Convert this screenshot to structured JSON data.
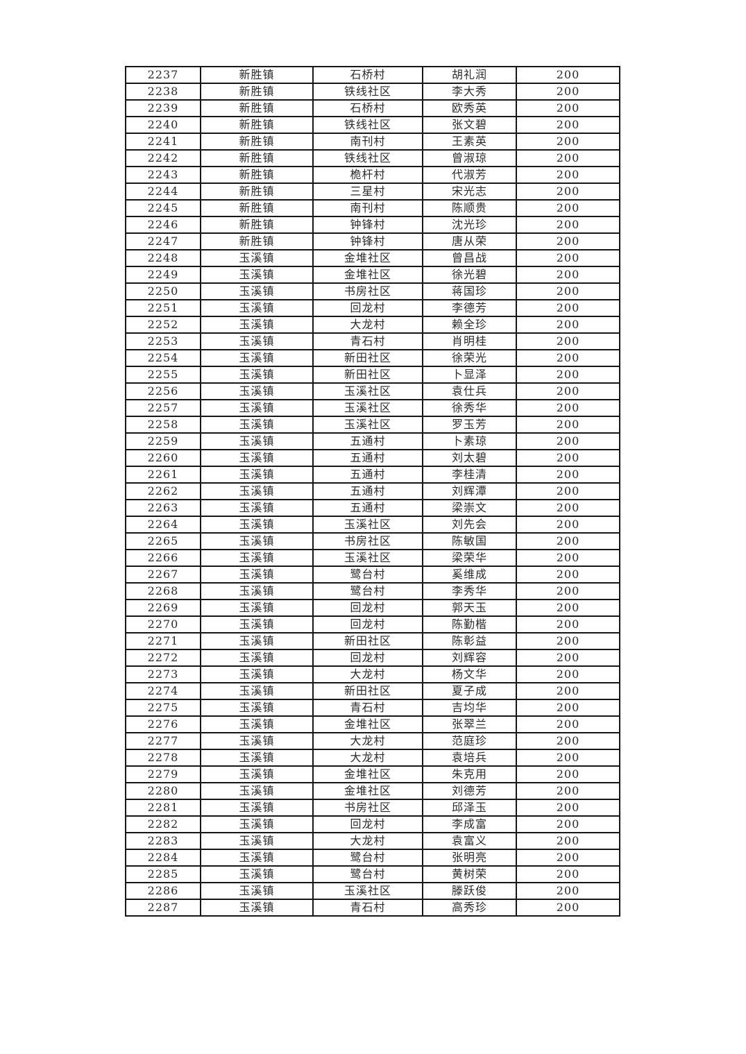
{
  "page": {
    "background_color": "#ffffff",
    "text_color": "#2a2a2a",
    "border_color": "#161616"
  },
  "table": {
    "description": "subsidy roster list, 5 columns, no visible header row on this page",
    "rows": [
      {
        "id": "2237",
        "town": "新胜镇",
        "village": "石桥村",
        "name": "胡礼润",
        "amount": "200"
      },
      {
        "id": "2238",
        "town": "新胜镇",
        "village": "铁线社区",
        "name": "李大秀",
        "amount": "200"
      },
      {
        "id": "2239",
        "town": "新胜镇",
        "village": "石桥村",
        "name": "欧秀英",
        "amount": "200"
      },
      {
        "id": "2240",
        "town": "新胜镇",
        "village": "铁线社区",
        "name": "张文碧",
        "amount": "200"
      },
      {
        "id": "2241",
        "town": "新胜镇",
        "village": "南刊村",
        "name": "王素英",
        "amount": "200"
      },
      {
        "id": "2242",
        "town": "新胜镇",
        "village": "铁线社区",
        "name": "曾淑琼",
        "amount": "200"
      },
      {
        "id": "2243",
        "town": "新胜镇",
        "village": "桅杆村",
        "name": "代淑芳",
        "amount": "200"
      },
      {
        "id": "2244",
        "town": "新胜镇",
        "village": "三星村",
        "name": "宋光志",
        "amount": "200"
      },
      {
        "id": "2245",
        "town": "新胜镇",
        "village": "南刊村",
        "name": "陈顺贵",
        "amount": "200"
      },
      {
        "id": "2246",
        "town": "新胜镇",
        "village": "钟锋村",
        "name": "沈光珍",
        "amount": "200"
      },
      {
        "id": "2247",
        "town": "新胜镇",
        "village": "钟锋村",
        "name": "唐从荣",
        "amount": "200"
      },
      {
        "id": "2248",
        "town": "玉溪镇",
        "village": "金堆社区",
        "name": "曾昌战",
        "amount": "200"
      },
      {
        "id": "2249",
        "town": "玉溪镇",
        "village": "金堆社区",
        "name": "徐光碧",
        "amount": "200"
      },
      {
        "id": "2250",
        "town": "玉溪镇",
        "village": "书房社区",
        "name": "蒋国珍",
        "amount": "200"
      },
      {
        "id": "2251",
        "town": "玉溪镇",
        "village": "回龙村",
        "name": "李德芳",
        "amount": "200"
      },
      {
        "id": "2252",
        "town": "玉溪镇",
        "village": "大龙村",
        "name": "赖全珍",
        "amount": "200"
      },
      {
        "id": "2253",
        "town": "玉溪镇",
        "village": "青石村",
        "name": "肖明桂",
        "amount": "200"
      },
      {
        "id": "2254",
        "town": "玉溪镇",
        "village": "新田社区",
        "name": "徐荣光",
        "amount": "200"
      },
      {
        "id": "2255",
        "town": "玉溪镇",
        "village": "新田社区",
        "name": "卜显泽",
        "amount": "200"
      },
      {
        "id": "2256",
        "town": "玉溪镇",
        "village": "玉溪社区",
        "name": "袁仕兵",
        "amount": "200"
      },
      {
        "id": "2257",
        "town": "玉溪镇",
        "village": "玉溪社区",
        "name": "徐秀华",
        "amount": "200"
      },
      {
        "id": "2258",
        "town": "玉溪镇",
        "village": "玉溪社区",
        "name": "罗玉芳",
        "amount": "200"
      },
      {
        "id": "2259",
        "town": "玉溪镇",
        "village": "五通村",
        "name": "卜素琼",
        "amount": "200"
      },
      {
        "id": "2260",
        "town": "玉溪镇",
        "village": "五通村",
        "name": "刘太碧",
        "amount": "200"
      },
      {
        "id": "2261",
        "town": "玉溪镇",
        "village": "五通村",
        "name": "李桂清",
        "amount": "200"
      },
      {
        "id": "2262",
        "town": "玉溪镇",
        "village": "五通村",
        "name": "刘辉潭",
        "amount": "200"
      },
      {
        "id": "2263",
        "town": "玉溪镇",
        "village": "五通村",
        "name": "梁崇文",
        "amount": "200"
      },
      {
        "id": "2264",
        "town": "玉溪镇",
        "village": "玉溪社区",
        "name": "刘先会",
        "amount": "200"
      },
      {
        "id": "2265",
        "town": "玉溪镇",
        "village": "书房社区",
        "name": "陈敏国",
        "amount": "200"
      },
      {
        "id": "2266",
        "town": "玉溪镇",
        "village": "玉溪社区",
        "name": "梁荣华",
        "amount": "200"
      },
      {
        "id": "2267",
        "town": "玉溪镇",
        "village": "鹭台村",
        "name": "奚维成",
        "amount": "200"
      },
      {
        "id": "2268",
        "town": "玉溪镇",
        "village": "鹭台村",
        "name": "李秀华",
        "amount": "200"
      },
      {
        "id": "2269",
        "town": "玉溪镇",
        "village": "回龙村",
        "name": "郭天玉",
        "amount": "200"
      },
      {
        "id": "2270",
        "town": "玉溪镇",
        "village": "回龙村",
        "name": "陈勤楷",
        "amount": "200"
      },
      {
        "id": "2271",
        "town": "玉溪镇",
        "village": "新田社区",
        "name": "陈彰益",
        "amount": "200"
      },
      {
        "id": "2272",
        "town": "玉溪镇",
        "village": "回龙村",
        "name": "刘辉容",
        "amount": "200"
      },
      {
        "id": "2273",
        "town": "玉溪镇",
        "village": "大龙村",
        "name": "杨文华",
        "amount": "200"
      },
      {
        "id": "2274",
        "town": "玉溪镇",
        "village": "新田社区",
        "name": "夏子成",
        "amount": "200"
      },
      {
        "id": "2275",
        "town": "玉溪镇",
        "village": "青石村",
        "name": "吉均华",
        "amount": "200"
      },
      {
        "id": "2276",
        "town": "玉溪镇",
        "village": "金堆社区",
        "name": "张翠兰",
        "amount": "200"
      },
      {
        "id": "2277",
        "town": "玉溪镇",
        "village": "大龙村",
        "name": "范庭珍",
        "amount": "200"
      },
      {
        "id": "2278",
        "town": "玉溪镇",
        "village": "大龙村",
        "name": "袁培兵",
        "amount": "200"
      },
      {
        "id": "2279",
        "town": "玉溪镇",
        "village": "金堆社区",
        "name": "朱克用",
        "amount": "200"
      },
      {
        "id": "2280",
        "town": "玉溪镇",
        "village": "金堆社区",
        "name": "刘德芳",
        "amount": "200"
      },
      {
        "id": "2281",
        "town": "玉溪镇",
        "village": "书房社区",
        "name": "邱泽玉",
        "amount": "200"
      },
      {
        "id": "2282",
        "town": "玉溪镇",
        "village": "回龙村",
        "name": "李成富",
        "amount": "200"
      },
      {
        "id": "2283",
        "town": "玉溪镇",
        "village": "大龙村",
        "name": "袁富义",
        "amount": "200"
      },
      {
        "id": "2284",
        "town": "玉溪镇",
        "village": "鹭台村",
        "name": "张明亮",
        "amount": "200"
      },
      {
        "id": "2285",
        "town": "玉溪镇",
        "village": "鹭台村",
        "name": "黄树荣",
        "amount": "200"
      },
      {
        "id": "2286",
        "town": "玉溪镇",
        "village": "玉溪社区",
        "name": "滕跃俊",
        "amount": "200"
      },
      {
        "id": "2287",
        "town": "玉溪镇",
        "village": "青石村",
        "name": "高秀珍",
        "amount": "200"
      }
    ]
  }
}
